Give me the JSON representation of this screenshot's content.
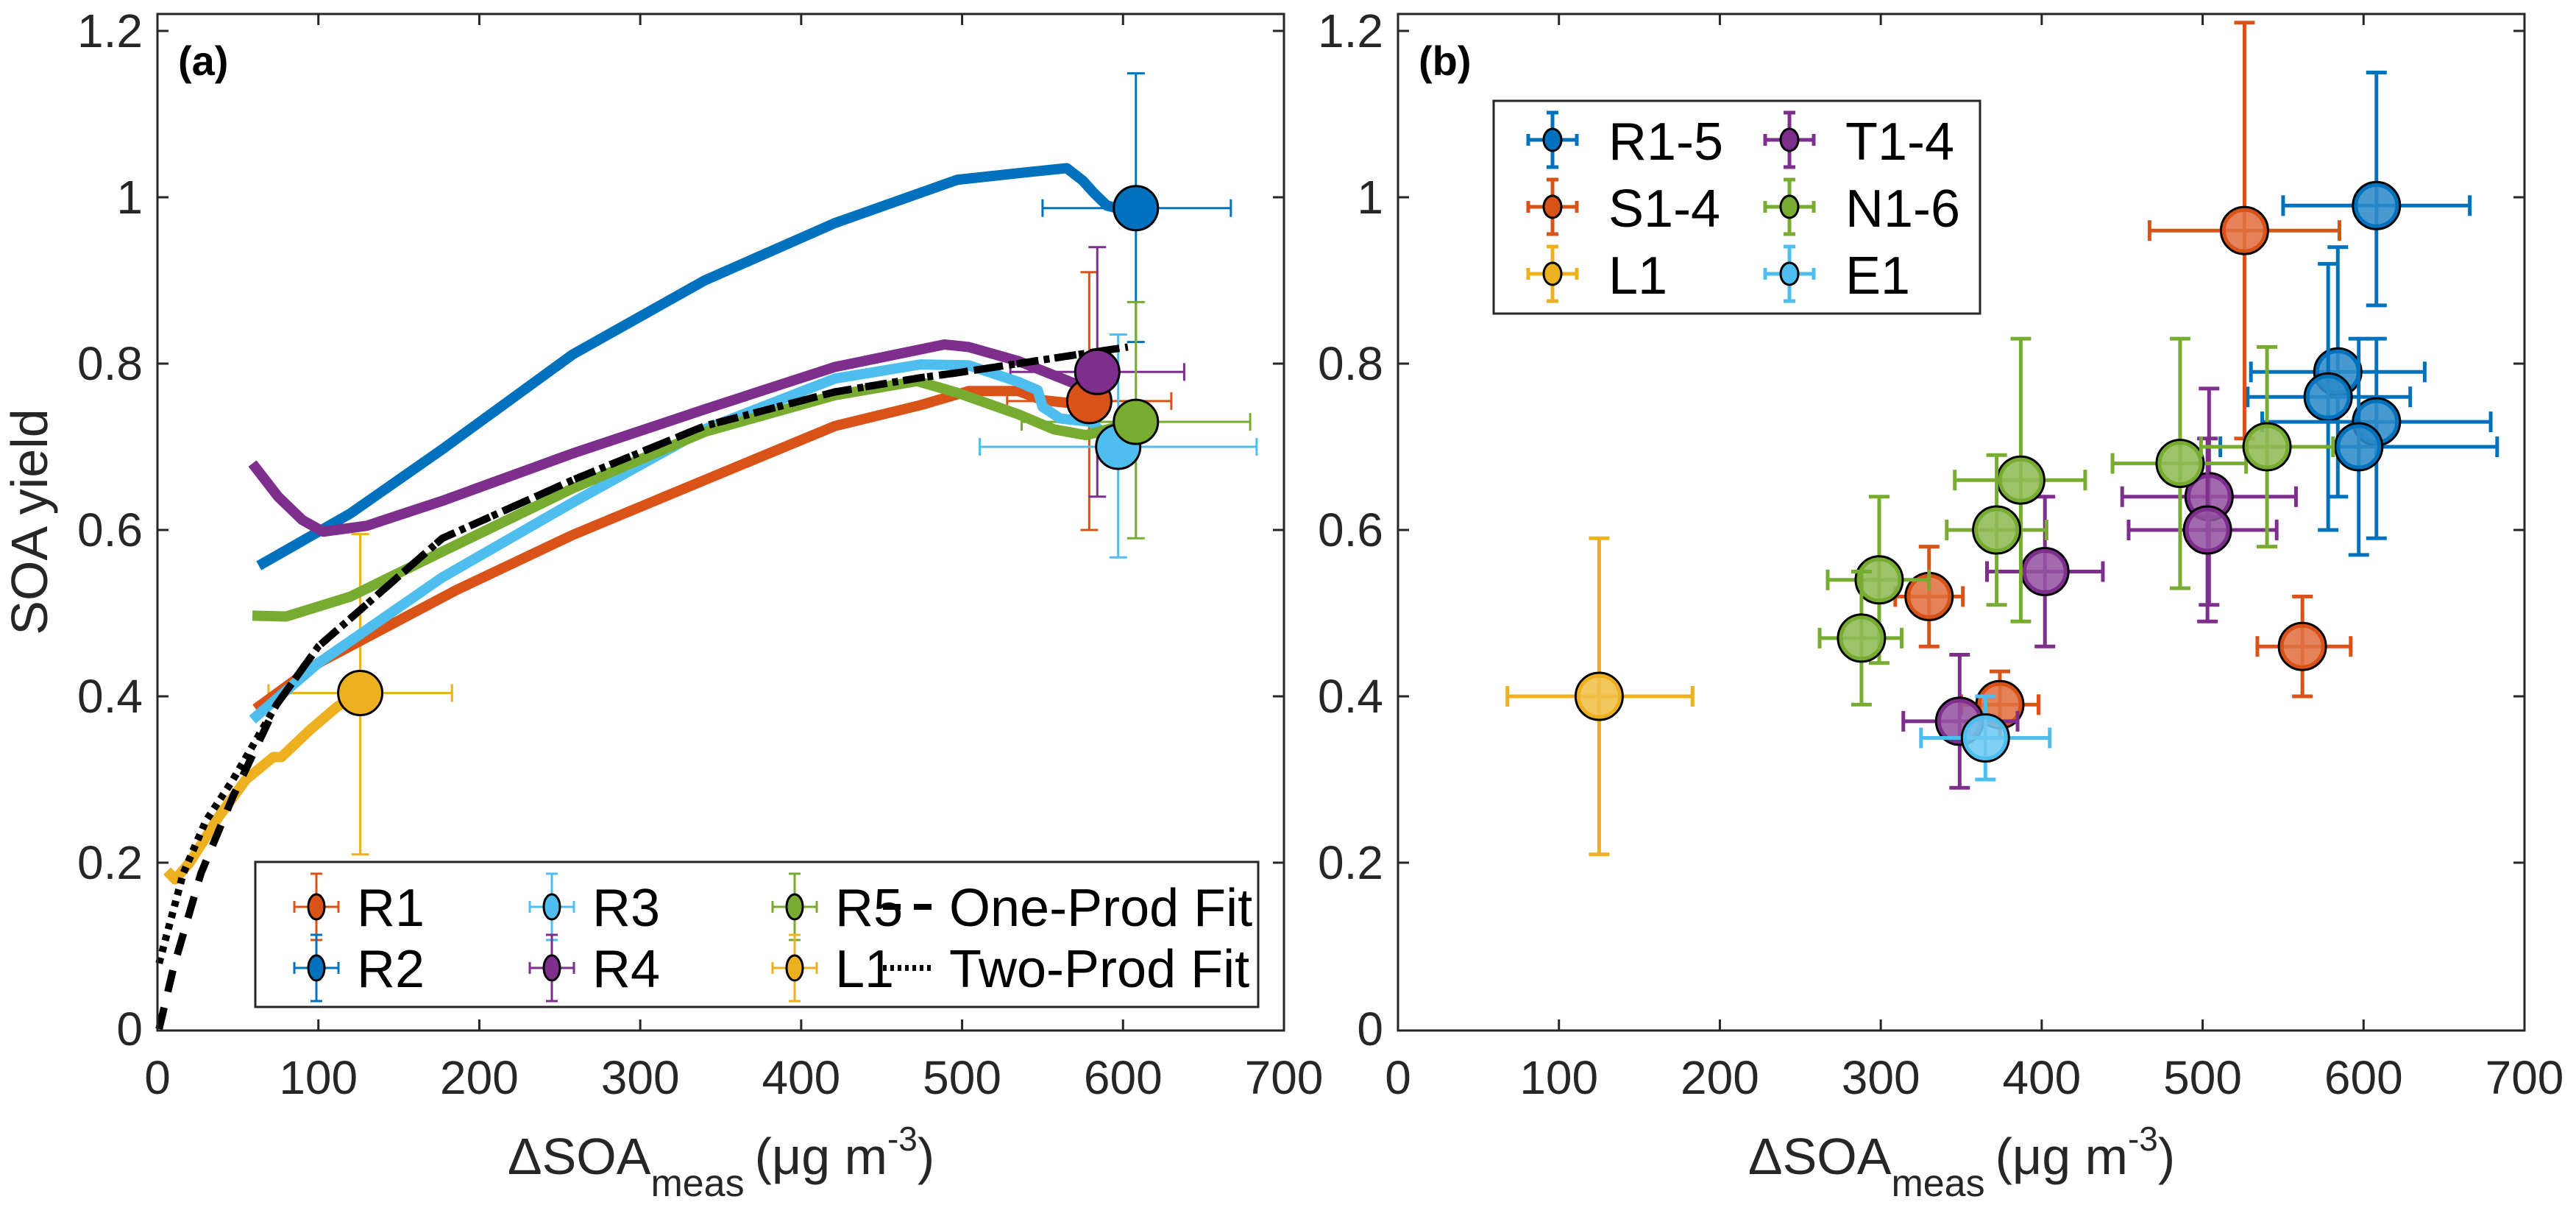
{
  "chart_data": [
    {
      "panel": "(a)",
      "type": "line",
      "title": "",
      "xlabel": {
        "main": "ΔSOA",
        "sub": "meas",
        "unit_prefix": "(μg m",
        "unit_sup": "-3",
        "unit_suffix": ")"
      },
      "ylabel": "SOA yield",
      "xlim": [
        0,
        700
      ],
      "ylim": [
        0,
        1.2
      ],
      "xticks": [
        0,
        100,
        200,
        300,
        400,
        500,
        600,
        700
      ],
      "yticks": [
        0,
        0.2,
        0.4,
        0.6,
        0.8,
        1,
        1.2
      ],
      "xtick_labels": [
        "0",
        "100",
        "200",
        "300",
        "400",
        "500",
        "600",
        "700"
      ],
      "ytick_labels": [
        "0",
        "0.2",
        "0.4",
        "0.6",
        "0.8",
        "1",
        "1.2"
      ],
      "grid": false,
      "legend_placement": "bottom",
      "legend_columns": 4,
      "curves": [
        {
          "name": "R1",
          "color": "#D95319",
          "x": [
            61,
            100,
            186,
            258,
            340,
            421,
            474,
            504,
            535,
            550,
            565,
            579
          ],
          "y": [
            0.385,
            0.44,
            0.528,
            0.594,
            0.66,
            0.725,
            0.75,
            0.767,
            0.767,
            0.756,
            0.753,
            0.755
          ]
        },
        {
          "name": "R2",
          "color": "#0072BD",
          "x": [
            63,
            120,
            177,
            258,
            340,
            421,
            497,
            540,
            565,
            575,
            582,
            590,
            600,
            608
          ],
          "y": [
            0.557,
            0.62,
            0.697,
            0.811,
            0.9,
            0.969,
            1.021,
            1.03,
            1.035,
            1.02,
            1.005,
            0.99,
            0.985,
            0.987
          ]
        },
        {
          "name": "R3",
          "color": "#4DBEEE",
          "x": [
            59,
            100,
            177,
            258,
            340,
            421,
            474,
            504,
            535,
            547,
            550,
            561,
            580,
            597
          ],
          "y": [
            0.372,
            0.44,
            0.543,
            0.633,
            0.721,
            0.782,
            0.799,
            0.798,
            0.778,
            0.768,
            0.748,
            0.734,
            0.73,
            0.7
          ]
        },
        {
          "name": "R4",
          "color": "#7E2F8E",
          "x": [
            59,
            75,
            90,
            103,
            130,
            177,
            258,
            340,
            421,
            489,
            504,
            535,
            570,
            584
          ],
          "y": [
            0.68,
            0.64,
            0.612,
            0.598,
            0.605,
            0.635,
            0.692,
            0.745,
            0.796,
            0.823,
            0.82,
            0.803,
            0.776,
            0.79
          ]
        },
        {
          "name": "R5",
          "color": "#77AC30",
          "x": [
            59,
            80,
            120,
            177,
            258,
            340,
            421,
            472,
            497,
            535,
            557,
            577,
            608
          ],
          "y": [
            0.497,
            0.496,
            0.52,
            0.574,
            0.65,
            0.718,
            0.762,
            0.779,
            0.765,
            0.739,
            0.721,
            0.714,
            0.73
          ]
        },
        {
          "name": "L1",
          "color": "#EDB120",
          "x": [
            6,
            11,
            20,
            38,
            55,
            72,
            77,
            95,
            112,
            126
          ],
          "y": [
            0.19,
            0.18,
            0.2,
            0.255,
            0.3,
            0.327,
            0.327,
            0.36,
            0.388,
            0.404
          ]
        }
      ],
      "fits": [
        {
          "name": "One-Prod Fit",
          "style": "dashed",
          "color": "#000000",
          "x": [
            1,
            10,
            27,
            47,
            74,
            100,
            177,
            258,
            340,
            421,
            474,
            497,
            603
          ],
          "y": [
            0.0,
            0.074,
            0.187,
            0.28,
            0.39,
            0.46,
            0.59,
            0.66,
            0.725,
            0.766,
            0.783,
            0.789,
            0.82
          ]
        },
        {
          "name": "Two-Prod Fit",
          "style": "dotted",
          "color": "#000000",
          "x": [
            1,
            16,
            30,
            47,
            74,
            100,
            177,
            258,
            340,
            421,
            474,
            497,
            603
          ],
          "y": [
            0.079,
            0.187,
            0.25,
            0.3,
            0.39,
            0.46,
            0.59,
            0.66,
            0.725,
            0.766,
            0.783,
            0.789,
            0.82
          ]
        }
      ],
      "points": [
        {
          "name": "R1",
          "color": "#D95319",
          "x": 579,
          "y": 0.755,
          "xerr": [
            528,
            630
          ],
          "yerr": [
            0.6,
            0.91
          ]
        },
        {
          "name": "R2",
          "color": "#0072BD",
          "x": 608,
          "y": 0.987,
          "xerr": [
            550,
            667
          ],
          "yerr": [
            0.826,
            1.149
          ]
        },
        {
          "name": "R3",
          "color": "#4DBEEE",
          "x": 597,
          "y": 0.7,
          "xerr": [
            511,
            683
          ],
          "yerr": [
            0.567,
            0.835
          ]
        },
        {
          "name": "R4",
          "color": "#7E2F8E",
          "x": 584,
          "y": 0.79,
          "xerr": [
            530,
            638
          ],
          "yerr": [
            0.64,
            0.94
          ]
        },
        {
          "name": "R5",
          "color": "#77AC30",
          "x": 608,
          "y": 0.73,
          "xerr": [
            537,
            679
          ],
          "yerr": [
            0.59,
            0.874
          ]
        },
        {
          "name": "L1",
          "color": "#EDB120",
          "x": 126,
          "y": 0.404,
          "xerr": [
            69,
            183
          ],
          "yerr": [
            0.21,
            0.595
          ]
        }
      ],
      "legend": [
        {
          "label": "R1",
          "kind": "errorbar",
          "color": "#D95319"
        },
        {
          "label": "R2",
          "kind": "errorbar",
          "color": "#0072BD"
        },
        {
          "label": "R3",
          "kind": "errorbar",
          "color": "#4DBEEE"
        },
        {
          "label": "R4",
          "kind": "errorbar",
          "color": "#7E2F8E"
        },
        {
          "label": "R5",
          "kind": "errorbar",
          "color": "#77AC30"
        },
        {
          "label": "L1",
          "kind": "errorbar",
          "color": "#EDB120"
        },
        {
          "label": "One-Prod Fit",
          "kind": "dashed",
          "color": "#000000"
        },
        {
          "label": "Two-Prod Fit",
          "kind": "dotted",
          "color": "#000000"
        }
      ]
    },
    {
      "panel": "(b)",
      "type": "scatter",
      "title": "",
      "xlabel": {
        "main": "ΔSOA",
        "sub": "meas",
        "unit_prefix": "(μg m",
        "unit_sup": "-3",
        "unit_suffix": ")"
      },
      "ylabel": "",
      "xlim": [
        0,
        700
      ],
      "ylim": [
        0,
        1.2
      ],
      "xticks": [
        0,
        100,
        200,
        300,
        400,
        500,
        600,
        700
      ],
      "yticks": [
        0,
        0.2,
        0.4,
        0.6,
        0.8,
        1,
        1.2
      ],
      "xtick_labels": [
        "0",
        "100",
        "200",
        "300",
        "400",
        "500",
        "600",
        "700"
      ],
      "ytick_labels": [
        "0",
        "0.2",
        "0.4",
        "0.6",
        "0.8",
        "1",
        "1.2"
      ],
      "grid": false,
      "legend_placement": "top-left",
      "legend_columns": 2,
      "series": [
        {
          "name": "R1-5",
          "color": "#0072BD",
          "points": [
            {
              "x": 608,
              "y": 0.99,
              "xerr": [
                550,
                666
              ],
              "yerr": [
                0.87,
                1.15
              ]
            },
            {
              "x": 584,
              "y": 0.79,
              "xerr": [
                530,
                638
              ],
              "yerr": [
                0.64,
                0.94
              ]
            },
            {
              "x": 578,
              "y": 0.76,
              "xerr": [
                528,
                629
              ],
              "yerr": [
                0.6,
                0.92
              ]
            },
            {
              "x": 608,
              "y": 0.73,
              "xerr": [
                537,
                679
              ],
              "yerr": [
                0.59,
                0.83
              ]
            },
            {
              "x": 597,
              "y": 0.7,
              "xerr": [
                511,
                683
              ],
              "yerr": [
                0.57,
                0.83
              ]
            }
          ]
        },
        {
          "name": "S1-4",
          "color": "#D95319",
          "points": [
            {
              "x": 526,
              "y": 0.96,
              "xerr": [
                467,
                585
              ],
              "yerr": [
                0.71,
                1.21
              ]
            },
            {
              "x": 330,
              "y": 0.52,
              "xerr": [
                309,
                351
              ],
              "yerr": [
                0.46,
                0.58
              ]
            },
            {
              "x": 374,
              "y": 0.39,
              "xerr": [
                350,
                398
              ],
              "yerr": [
                0.35,
                0.43
              ]
            },
            {
              "x": 562,
              "y": 0.46,
              "xerr": [
                534,
                592
              ],
              "yerr": [
                0.4,
                0.52
              ]
            }
          ]
        },
        {
          "name": "L1",
          "color": "#EDB120",
          "points": [
            {
              "x": 125,
              "y": 0.4,
              "xerr": [
                68,
                183
              ],
              "yerr": [
                0.21,
                0.59
              ]
            }
          ]
        },
        {
          "name": "T1-4",
          "color": "#7E2F8E",
          "points": [
            {
              "x": 349,
              "y": 0.37,
              "xerr": [
                314,
                385
              ],
              "yerr": [
                0.29,
                0.45
              ]
            },
            {
              "x": 402,
              "y": 0.55,
              "xerr": [
                366,
                438
              ],
              "yerr": [
                0.46,
                0.64
              ]
            },
            {
              "x": 504,
              "y": 0.64,
              "xerr": [
                450,
                558
              ],
              "yerr": [
                0.51,
                0.77
              ]
            },
            {
              "x": 503,
              "y": 0.6,
              "xerr": [
                454,
                546
              ],
              "yerr": [
                0.49,
                0.71
              ]
            }
          ]
        },
        {
          "name": "N1-6",
          "color": "#77AC30",
          "points": [
            {
              "x": 299,
              "y": 0.54,
              "xerr": [
                267,
                330
              ],
              "yerr": [
                0.44,
                0.64
              ]
            },
            {
              "x": 288,
              "y": 0.47,
              "xerr": [
                262,
                313
              ],
              "yerr": [
                0.39,
                0.55
              ]
            },
            {
              "x": 387,
              "y": 0.66,
              "xerr": [
                346,
                427
              ],
              "yerr": [
                0.49,
                0.83
              ]
            },
            {
              "x": 372,
              "y": 0.6,
              "xerr": [
                341,
                403
              ],
              "yerr": [
                0.51,
                0.69
              ]
            },
            {
              "x": 486,
              "y": 0.68,
              "xerr": [
                444,
                527
              ],
              "yerr": [
                0.53,
                0.83
              ]
            },
            {
              "x": 540,
              "y": 0.7,
              "xerr": [
                499,
                581
              ],
              "yerr": [
                0.58,
                0.82
              ]
            }
          ]
        },
        {
          "name": "E1",
          "color": "#4DBEEE",
          "points": [
            {
              "x": 365,
              "y": 0.35,
              "xerr": [
                325,
                405
              ],
              "yerr": [
                0.3,
                0.4
              ]
            }
          ]
        }
      ],
      "legend": [
        {
          "label": "R1-5",
          "color": "#0072BD"
        },
        {
          "label": "S1-4",
          "color": "#D95319"
        },
        {
          "label": "L1",
          "color": "#EDB120"
        },
        {
          "label": "T1-4",
          "color": "#7E2F8E"
        },
        {
          "label": "N1-6",
          "color": "#77AC30"
        },
        {
          "label": "E1",
          "color": "#4DBEEE"
        }
      ]
    }
  ]
}
